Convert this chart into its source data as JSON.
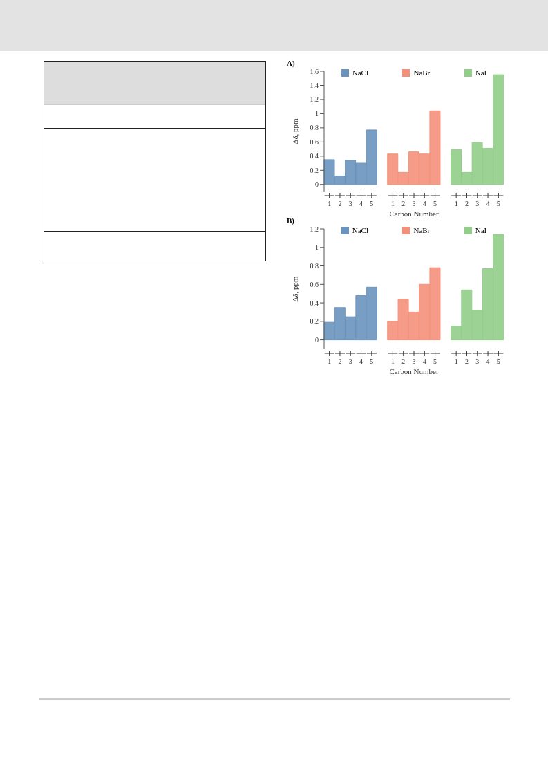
{
  "chart_data": [
    {
      "type": "bar",
      "title": "A)",
      "xlabel": "Carbon Number",
      "ylabel": "Δδ, ppm",
      "categories": [
        "1",
        "2",
        "3",
        "4",
        "5",
        null,
        "1",
        "2",
        "3",
        "4",
        "5",
        null,
        "1",
        "2",
        "3",
        "4",
        "5"
      ],
      "series": [
        {
          "name": "NaCl",
          "color": "#6a93bd",
          "values": [
            0.35,
            0.12,
            0.34,
            0.3,
            0.77,
            null,
            null,
            null,
            null,
            null,
            null,
            null,
            null,
            null,
            null,
            null,
            null
          ]
        },
        {
          "name": "NaBr",
          "color": "#f4907a",
          "values": [
            null,
            null,
            null,
            null,
            null,
            null,
            0.43,
            0.17,
            0.46,
            0.43,
            1.04,
            null,
            null,
            null,
            null,
            null,
            null
          ]
        },
        {
          "name": "NaI",
          "color": "#92cd8a",
          "values": [
            null,
            null,
            null,
            null,
            null,
            null,
            null,
            null,
            null,
            null,
            null,
            null,
            0.49,
            0.17,
            0.59,
            0.51,
            1.55
          ]
        }
      ],
      "ylim": [
        -0.1,
        1.6
      ],
      "yticks": [
        0,
        0.2,
        0.4,
        0.6,
        0.8,
        1,
        1.2,
        1.4,
        1.6
      ],
      "grid": false,
      "legend": "top"
    },
    {
      "type": "bar",
      "title": "B)",
      "xlabel": "Carbon Number",
      "ylabel": "Δδ, ppm",
      "categories": [
        "1",
        "2",
        "3",
        "4",
        "5",
        null,
        "1",
        "2",
        "3",
        "4",
        "5",
        null,
        "1",
        "2",
        "3",
        "4",
        "5"
      ],
      "series": [
        {
          "name": "NaCl",
          "color": "#6a93bd",
          "values": [
            0.19,
            0.35,
            0.25,
            0.48,
            0.57,
            null,
            null,
            null,
            null,
            null,
            null,
            null,
            null,
            null,
            null,
            null,
            null
          ]
        },
        {
          "name": "NaBr",
          "color": "#f4907a",
          "values": [
            null,
            null,
            null,
            null,
            null,
            null,
            0.2,
            0.44,
            0.3,
            0.6,
            0.78,
            null,
            null,
            null,
            null,
            null,
            null
          ]
        },
        {
          "name": "NaI",
          "color": "#92cd8a",
          "values": [
            null,
            null,
            null,
            null,
            null,
            null,
            null,
            null,
            null,
            null,
            null,
            null,
            0.15,
            0.54,
            0.32,
            0.77,
            1.14
          ]
        }
      ],
      "ylim": [
        -0.1,
        1.2
      ],
      "yticks": [
        0,
        0.2,
        0.4,
        0.6,
        0.8,
        1,
        1.2
      ],
      "grid": false,
      "legend": "top"
    }
  ]
}
